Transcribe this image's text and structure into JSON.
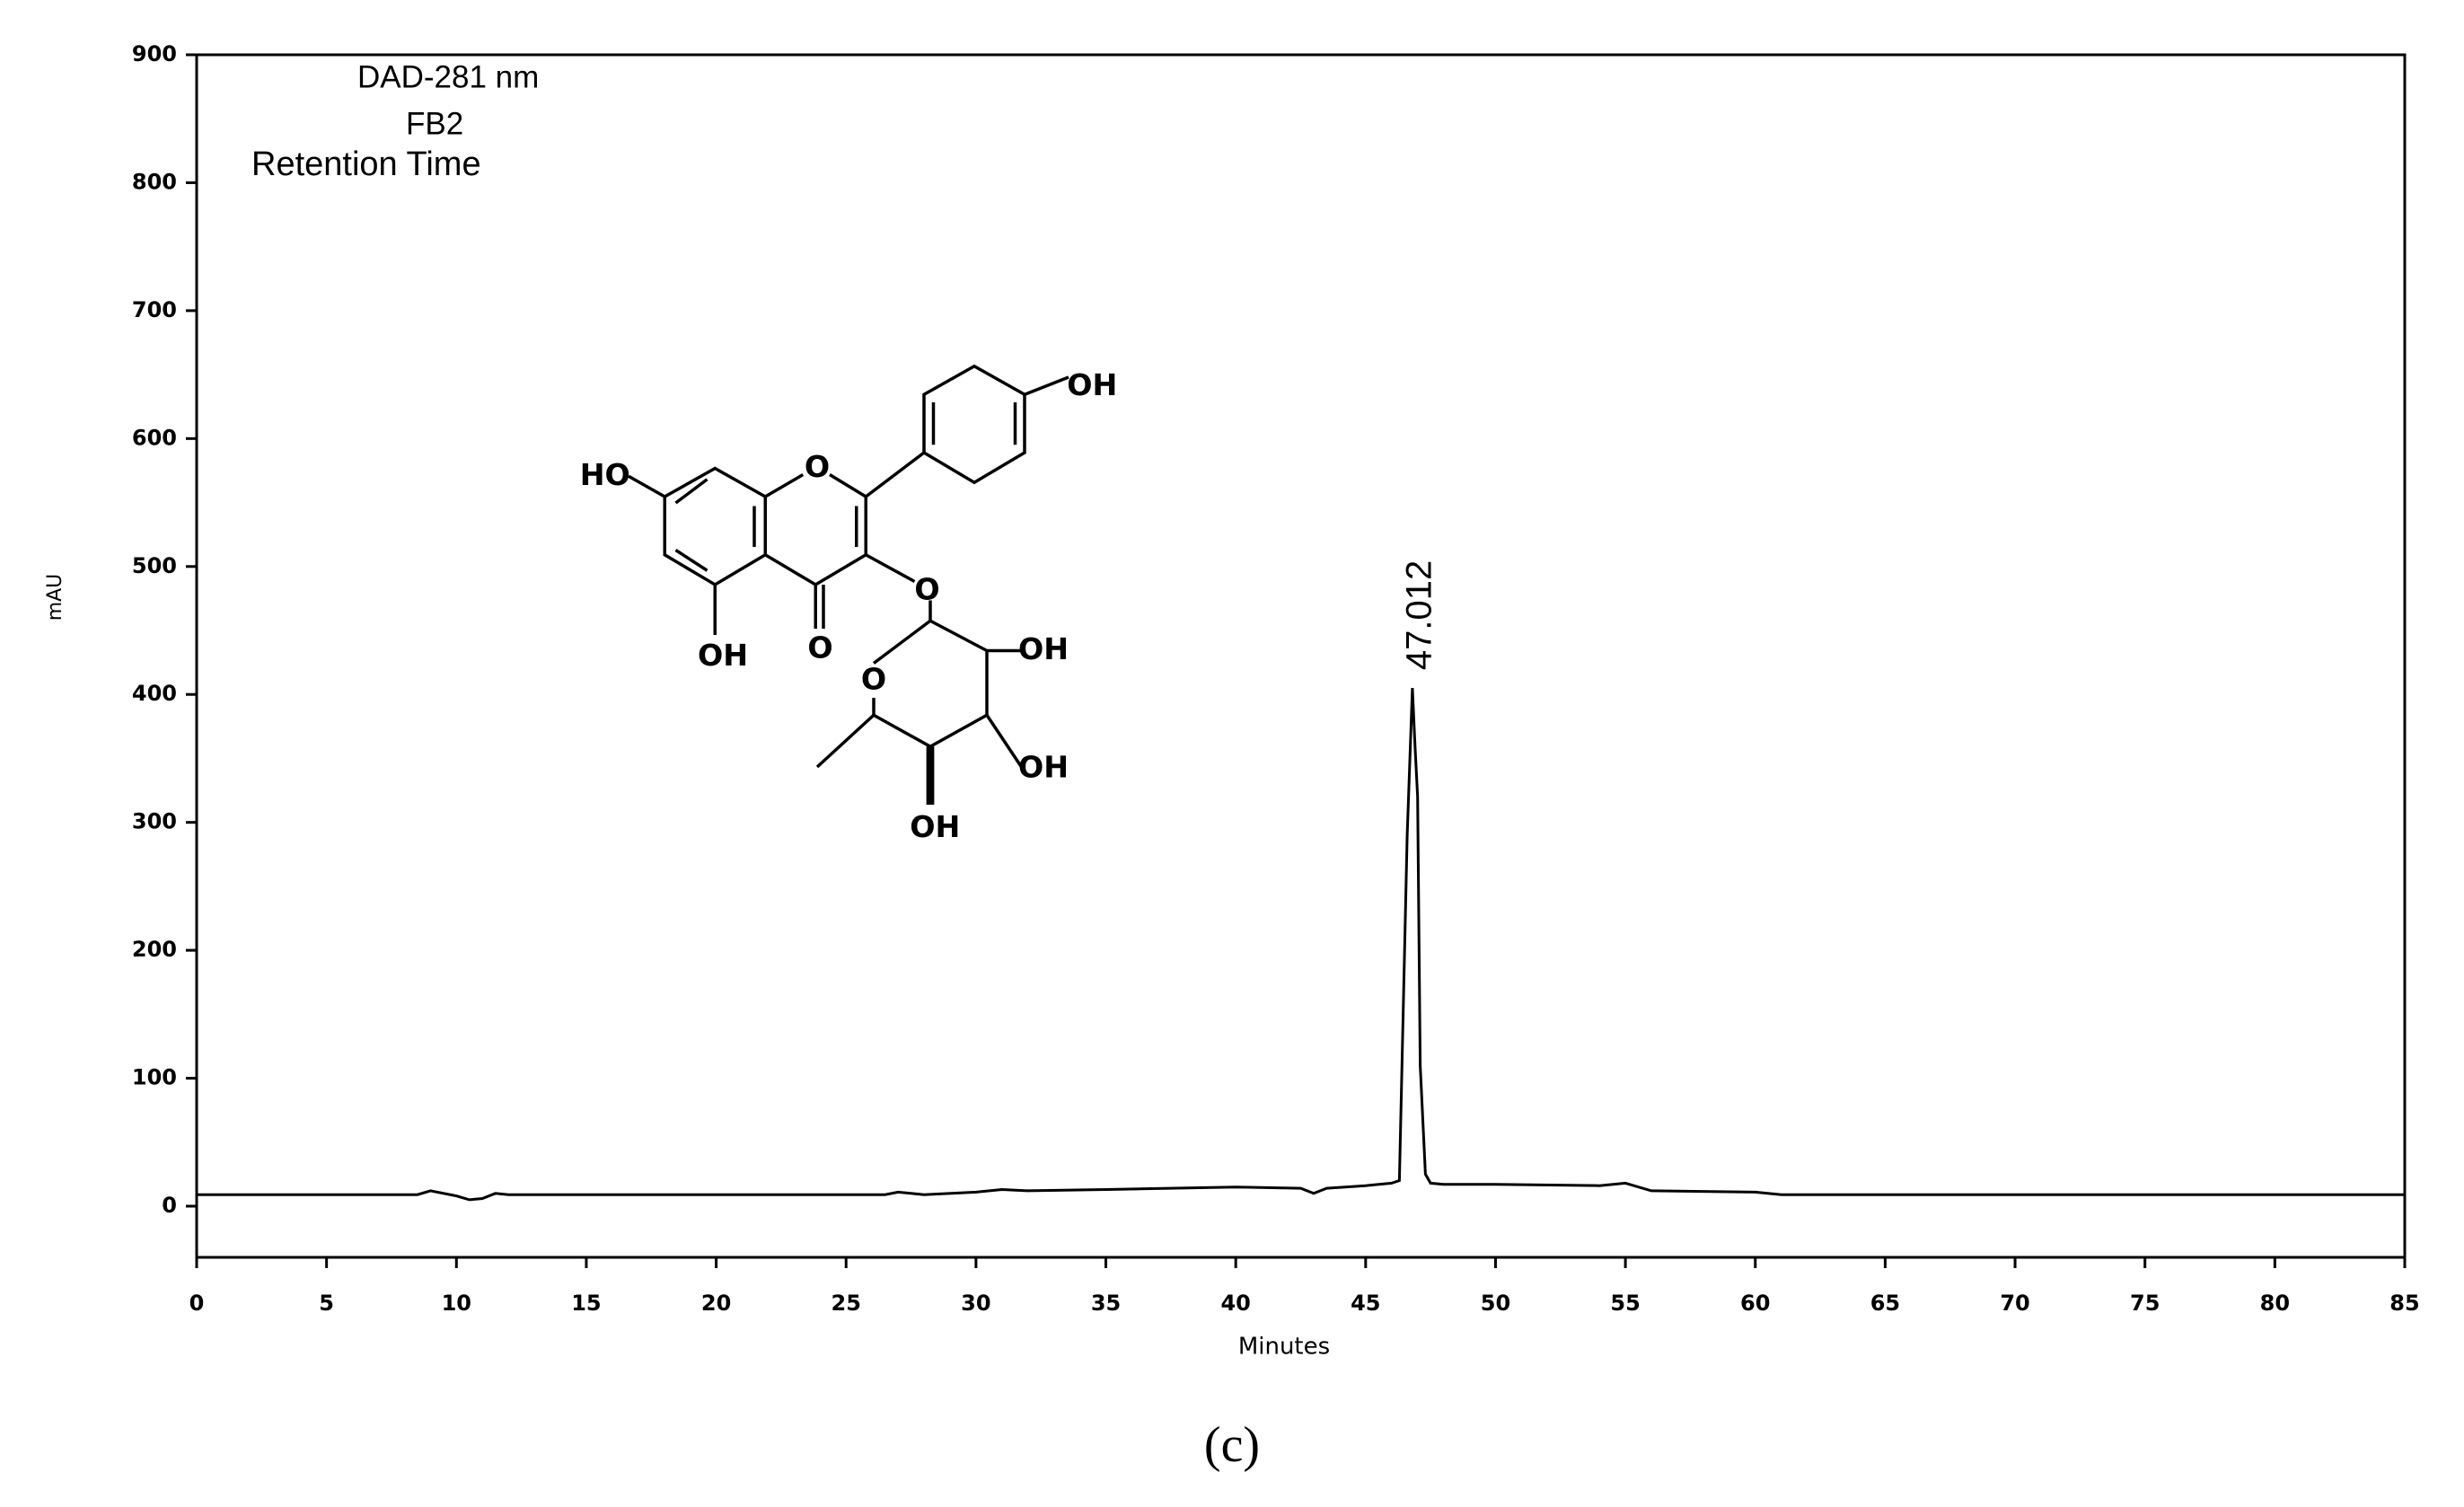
{
  "chart_data": {
    "type": "line",
    "x_label": "Minutes",
    "y_label": "mAU",
    "caption": "(c)",
    "legend_title": "FB2",
    "legend_subtitle": "Retention Time",
    "xlim": [
      0,
      85
    ],
    "xticks": [
      0,
      5,
      10,
      15,
      20,
      25,
      30,
      35,
      40,
      45,
      50,
      55,
      60,
      65,
      70,
      75,
      80,
      85
    ],
    "ylim": [
      -40,
      900
    ],
    "yticks": [
      0,
      100,
      200,
      300,
      400,
      500,
      600,
      700,
      800,
      900
    ],
    "series": [
      {
        "name": "DAD-281 nm",
        "color": "#000000",
        "x": [
          0,
          8.5,
          9,
          10,
          10.5,
          11,
          11.5,
          12,
          26.5,
          27,
          28,
          30,
          31,
          32,
          35,
          40,
          42.5,
          43,
          43.5,
          45,
          46,
          46.3,
          46.6,
          46.8,
          46.9,
          47.0,
          47.1,
          47.3,
          47.5,
          48,
          50,
          54,
          55,
          56,
          60,
          61,
          70,
          85
        ],
        "values": [
          9,
          9,
          12,
          8,
          5,
          6,
          10,
          9,
          9,
          11,
          9,
          11,
          13,
          12,
          13,
          15,
          14,
          10,
          14,
          16,
          18,
          20,
          290,
          405,
          360,
          320,
          110,
          25,
          18,
          17,
          17,
          16,
          18,
          12,
          11,
          9,
          9,
          9
        ]
      }
    ],
    "peak_labels": [
      47.012
    ]
  },
  "structure": {
    "labels": [
      "HO",
      "O",
      "O",
      "OH",
      "OH",
      "O",
      "O",
      "OH",
      "OH",
      "OH"
    ]
  }
}
